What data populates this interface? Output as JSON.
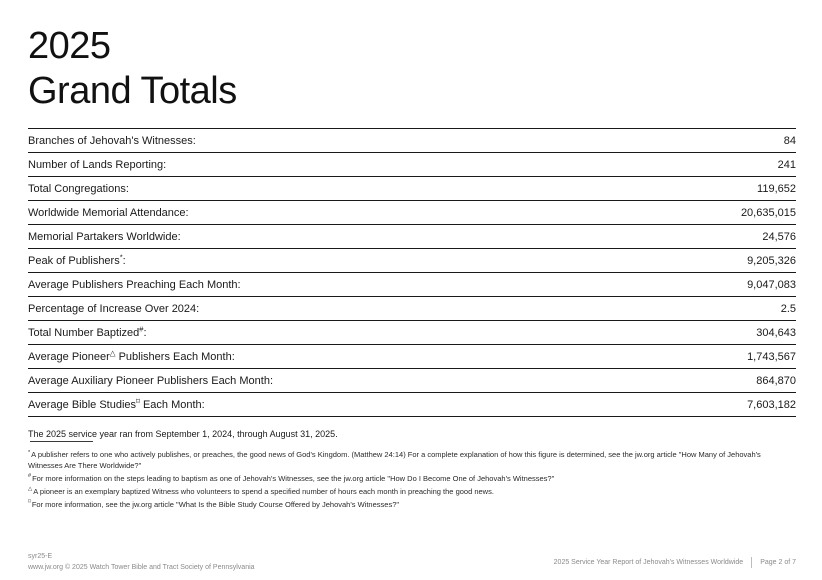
{
  "title": {
    "line1": "2025",
    "line2": "Grand Totals"
  },
  "table": {
    "rows": [
      {
        "pre": "Branches of Jehovah's Witnesses",
        "sup": "",
        "post": ":",
        "value": "84"
      },
      {
        "pre": "Number of Lands Reporting",
        "sup": "",
        "post": ":",
        "value": "241"
      },
      {
        "pre": "Total Congregations",
        "sup": "",
        "post": ":",
        "value": "119,652"
      },
      {
        "pre": "Worldwide Memorial Attendance",
        "sup": "",
        "post": ":",
        "value": "20,635,015"
      },
      {
        "pre": "Memorial Partakers Worldwide",
        "sup": "",
        "post": ":",
        "value": "24,576"
      },
      {
        "pre": "Peak of Publishers",
        "sup": "*",
        "post": ":",
        "value": "9,205,326"
      },
      {
        "pre": "Average Publishers Preaching Each Month",
        "sup": "",
        "post": ":",
        "value": "9,047,083"
      },
      {
        "pre": "Percentage of Increase Over 2024",
        "sup": "",
        "post": ":",
        "value": "2.5"
      },
      {
        "pre": "Total Number Baptized",
        "sup": "#",
        "post": ":",
        "value": "304,643"
      },
      {
        "pre": "Average Pioneer",
        "sup": "△",
        "post": " Publishers Each Month:",
        "value": "1,743,567"
      },
      {
        "pre": "Average Auxiliary Pioneer Publishers Each Month",
        "sup": "",
        "post": ":",
        "value": "864,870"
      },
      {
        "pre": "Average Bible Studies",
        "sup": "⌑",
        "post": " Each Month:",
        "value": "7,603,182"
      }
    ]
  },
  "intro": {
    "link_text": "The 2025 service year",
    "rest_text": " ran from September 1, 2024, through August 31, 2025."
  },
  "footnotes": [
    {
      "marker": "*",
      "text": "A publisher refers to one who actively publishes, or preaches, the good news of God's Kingdom. (Matthew 24:14) For a complete explanation of how this figure is determined, see the jw.org article \"How Many of Jehovah's Witnesses Are There Worldwide?\""
    },
    {
      "marker": "#",
      "text": "For more information on the steps leading to baptism as one of Jehovah's Witnesses, see the jw.org article \"How Do I Become One of Jehovah's Witnesses?\""
    },
    {
      "marker": "△",
      "text": "A pioneer is an exemplary baptized Witness who volunteers to spend a specified number of hours each month in preaching the good news."
    },
    {
      "marker": "⌑",
      "text": "For more information, see the jw.org article \"What Is the Bible Study Course Offered by Jehovah's Witnesses?\""
    }
  ],
  "footer": {
    "doc_code": "syr25-E",
    "copyright": "www.jw.org © 2025 Watch Tower Bible and Tract Society of Pennsylvania",
    "report_title": "2025 Service Year Report of Jehovah's Witnesses Worldwide",
    "page": "Page 2 of 7"
  },
  "colors": {
    "text": "#1a1a1a",
    "rule": "#1a1a1a",
    "footer_gray": "#8a8a8a"
  }
}
